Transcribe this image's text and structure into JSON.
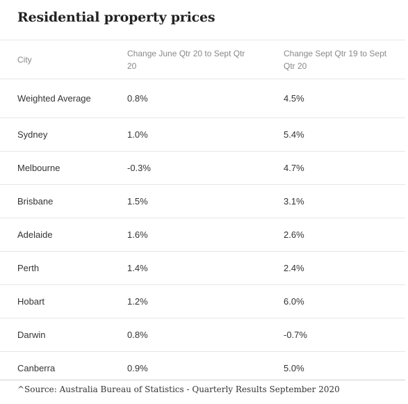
{
  "title": "Residential property prices",
  "chart_data": {
    "type": "table",
    "columns": [
      "City",
      "Change June Qtr 20 to Sept Qtr 20",
      "Change Sept Qtr 19 to Sept Qtr 20"
    ],
    "rows": [
      {
        "city": "Weighted Average",
        "qoq": "0.8%",
        "yoy": "4.5%"
      },
      {
        "city": "Sydney",
        "qoq": "1.0%",
        "yoy": "5.4%"
      },
      {
        "city": "Melbourne",
        "qoq": "-0.3%",
        "yoy": "4.7%"
      },
      {
        "city": "Brisbane",
        "qoq": "1.5%",
        "yoy": "3.1%"
      },
      {
        "city": "Adelaide",
        "qoq": "1.6%",
        "yoy": "2.6%"
      },
      {
        "city": "Perth",
        "qoq": "1.4%",
        "yoy": "2.4%"
      },
      {
        "city": "Hobart",
        "qoq": "1.2%",
        "yoy": "6.0%"
      },
      {
        "city": "Darwin",
        "qoq": "0.8%",
        "yoy": "-0.7%"
      },
      {
        "city": "Canberra",
        "qoq": "0.9%",
        "yoy": "5.0%"
      }
    ]
  },
  "source": "^Source: Australia Bureau of Statistics - Quarterly Results September 2020"
}
